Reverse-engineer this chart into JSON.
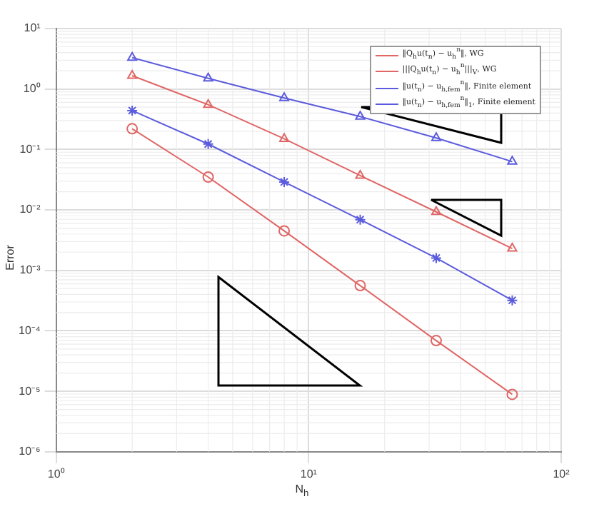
{
  "chart_data": {
    "type": "line",
    "xlabel": "N$_{h}$",
    "ylabel": "Error",
    "x": [
      2,
      4,
      8,
      16,
      32,
      64
    ],
    "series": [
      {
        "name": "‖Q$_{h}$u(t$_{n}$) − u$_{h}$$^{n}$‖, WG",
        "color": "#e06666",
        "marker": "circle",
        "values": [
          0.22,
          0.035,
          0.0045,
          0.00056,
          6.9e-05,
          8.9e-06
        ]
      },
      {
        "name": "|||Q$_{h}$u(t$_{n}$) − u$_{h}$$^{n}$|||$_{V}$, WG",
        "color": "#e06666",
        "marker": "triangle",
        "values": [
          1.66,
          0.55,
          0.15,
          0.037,
          0.0093,
          0.0023
        ]
      },
      {
        "name": "‖u(t$_{n}$) − u$_{h,fem}$$^{n}$‖, Finite element",
        "color": "#5b5bdd",
        "marker": "cross",
        "values": [
          0.44,
          0.123,
          0.029,
          0.0069,
          0.0016,
          0.00032
        ]
      },
      {
        "name": "‖u(t$_{n}$) − u$_{h,fem}$$^{n}$‖$_{1}$, Finite element",
        "color": "#5b5bdd",
        "marker": "triangle",
        "values": [
          3.3,
          1.5,
          0.71,
          0.35,
          0.155,
          0.063
        ]
      }
    ],
    "log": "xy",
    "xlim": [
      1,
      100
    ],
    "xticks": [
      {
        "value": 1,
        "label": "10⁰"
      },
      {
        "value": 10,
        "label": "10¹"
      },
      {
        "value": 100,
        "label": "10²"
      }
    ],
    "ylim": [
      1e-06,
      10
    ],
    "yticks": [
      {
        "value": 1e-06,
        "label": "10⁻⁶"
      },
      {
        "value": 1e-05,
        "label": "10⁻⁵"
      },
      {
        "value": 0.0001,
        "label": "10⁻⁴"
      },
      {
        "value": 0.001,
        "label": "10⁻³"
      },
      {
        "value": 0.01,
        "label": "10⁻²"
      },
      {
        "value": 0.1,
        "label": "10⁻¹"
      },
      {
        "value": 1,
        "label": "10⁰"
      },
      {
        "value": 10,
        "label": "10¹"
      }
    ],
    "grid": true,
    "legend": "top right",
    "line_style": "solid"
  }
}
